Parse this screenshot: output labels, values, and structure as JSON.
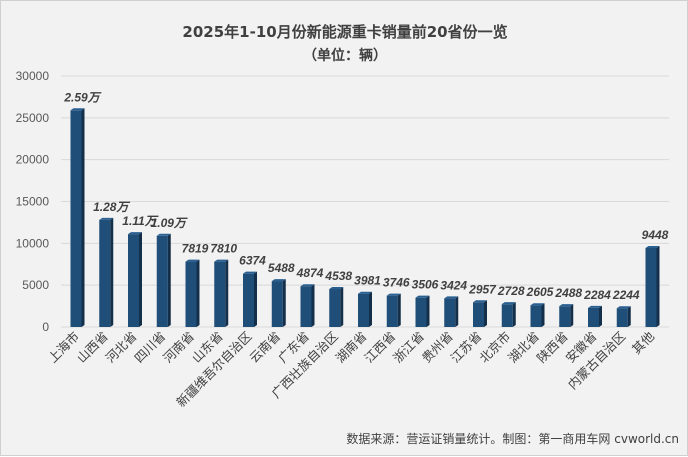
{
  "chart_data": {
    "type": "bar",
    "title": "2025年1-10月份新能源重卡销量前20省份一览",
    "subtitle": "（单位：辆）",
    "categories": [
      "上海市",
      "山西省",
      "河北省",
      "四川省",
      "河南省",
      "山东省",
      "新疆维吾尔自治区",
      "云南省",
      "广东省",
      "广西壮族自治区",
      "湖南省",
      "江西省",
      "浙江省",
      "贵州省",
      "江苏省",
      "北京市",
      "湖北省",
      "陕西省",
      "安徽省",
      "内蒙古自治区",
      "其他"
    ],
    "values": [
      25900,
      12800,
      11100,
      10900,
      7819,
      7810,
      6374,
      5488,
      4874,
      4538,
      3981,
      3746,
      3506,
      3424,
      2957,
      2728,
      2605,
      2488,
      2284,
      2244,
      9448
    ],
    "data_labels": [
      "2.59万",
      "1.28万",
      "1.11万",
      "1.09万",
      "7819",
      "7810",
      "6374",
      "5488",
      "4874",
      "4538",
      "3981",
      "3746",
      "3506",
      "3424",
      "2957",
      "2728",
      "2605",
      "2488",
      "2284",
      "2244",
      "9448"
    ],
    "yticks": [
      "0",
      "5000",
      "10000",
      "15000",
      "20000",
      "25000",
      "30000"
    ],
    "ylim": [
      0,
      30000
    ],
    "grid": true,
    "bar_color": "#1f4e79",
    "source": "数据来源：营运证销量统计。制图：第一商用车网 cvworld.cn"
  }
}
